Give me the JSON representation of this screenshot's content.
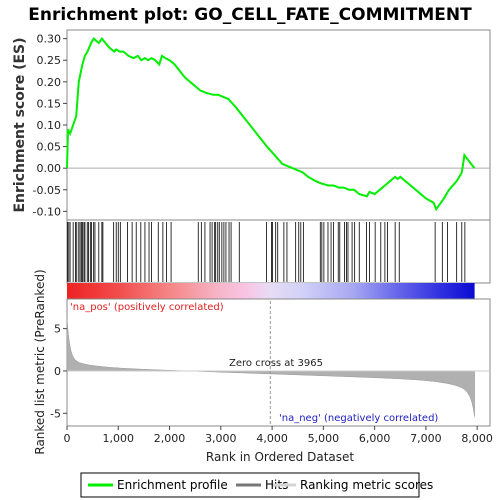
{
  "chart_data": {
    "type": "line",
    "title": "Enrichment plot: GO_CELL_FATE_COMMITMENT",
    "ylabel_top": "Enrichment score (ES)",
    "ylabel_bottom": "Ranked list metric (PreRanked)",
    "xlabel": "Rank in Ordered Dataset",
    "x_ticks": [
      "0",
      "1,000",
      "2,000",
      "3,000",
      "4,000",
      "5,000",
      "6,000",
      "7,000",
      "8,000"
    ],
    "x_tick_values": [
      0,
      1000,
      2000,
      3000,
      4000,
      5000,
      6000,
      7000,
      8000
    ],
    "xlim": [
      0,
      8250
    ],
    "es_ylim": [
      -0.12,
      0.32
    ],
    "es_ticks": [
      "0.30",
      "0.25",
      "0.20",
      "0.15",
      "0.10",
      "0.05",
      "0.00",
      "-0.05",
      "-0.10"
    ],
    "es_tick_values": [
      0.3,
      0.25,
      0.2,
      0.15,
      0.1,
      0.05,
      0.0,
      -0.05,
      -0.1
    ],
    "metric_ylim": [
      -6.5,
      8.5
    ],
    "metric_ticks": [
      "5",
      "0",
      "-5"
    ],
    "metric_tick_values": [
      5,
      0,
      -5
    ],
    "n_genes": 7950,
    "enrichment_profile": {
      "x": [
        0,
        20,
        60,
        180,
        230,
        300,
        350,
        400,
        470,
        520,
        620,
        680,
        820,
        920,
        960,
        1030,
        1100,
        1200,
        1300,
        1380,
        1450,
        1520,
        1580,
        1650,
        1720,
        1800,
        1850,
        1920,
        2000,
        2100,
        2300,
        2500,
        2600,
        2700,
        2850,
        2950,
        3050,
        3150,
        3300,
        3500,
        3700,
        3900,
        4050,
        4200,
        4400,
        4600,
        4700,
        4850,
        4950,
        5100,
        5200,
        5300,
        5400,
        5500,
        5600,
        5700,
        5850,
        5900,
        6000,
        6100,
        6200,
        6300,
        6400,
        6450,
        6500,
        6600,
        6800,
        7000,
        7150,
        7200,
        7350,
        7450,
        7600,
        7700,
        7750,
        7950
      ],
      "y": [
        0.0,
        0.09,
        0.08,
        0.12,
        0.2,
        0.24,
        0.26,
        0.27,
        0.29,
        0.3,
        0.29,
        0.3,
        0.28,
        0.27,
        0.275,
        0.27,
        0.27,
        0.26,
        0.255,
        0.26,
        0.25,
        0.255,
        0.25,
        0.255,
        0.25,
        0.24,
        0.26,
        0.255,
        0.25,
        0.24,
        0.21,
        0.19,
        0.18,
        0.175,
        0.17,
        0.17,
        0.165,
        0.16,
        0.14,
        0.11,
        0.08,
        0.05,
        0.03,
        0.01,
        0.0,
        -0.01,
        -0.02,
        -0.03,
        -0.035,
        -0.04,
        -0.04,
        -0.045,
        -0.045,
        -0.05,
        -0.05,
        -0.06,
        -0.065,
        -0.055,
        -0.06,
        -0.05,
        -0.04,
        -0.03,
        -0.02,
        -0.025,
        -0.02,
        -0.03,
        -0.05,
        -0.07,
        -0.08,
        -0.095,
        -0.07,
        -0.05,
        -0.03,
        -0.01,
        0.03,
        0.0
      ]
    },
    "hits": [
      10,
      35,
      60,
      120,
      165,
      190,
      230,
      255,
      280,
      300,
      330,
      350,
      395,
      420,
      455,
      480,
      520,
      545,
      620,
      680,
      700,
      910,
      960,
      1000,
      1040,
      1180,
      1270,
      1350,
      1440,
      1520,
      1600,
      1650,
      1780,
      1870,
      1940,
      2030,
      2560,
      2620,
      2690,
      2790,
      2830,
      2880,
      2900,
      2940,
      2970,
      3020,
      3060,
      3100,
      3160,
      3200,
      3360,
      3890,
      3990,
      4010,
      4070,
      4110,
      4230,
      4290,
      4460,
      4520,
      4560,
      4610,
      4940,
      4970,
      5010,
      5090,
      5150,
      5200,
      5290,
      5320,
      5410,
      5450,
      5480,
      5560,
      5610,
      5700,
      5840,
      5900,
      6010,
      6120,
      6200,
      6250,
      6400,
      6480,
      7180,
      7320,
      7420,
      7600,
      7700,
      7760
    ],
    "zero_cross_label": "Zero cross at 3965",
    "zero_cross": 3965,
    "pos_label": "'na_pos' (positively correlated)",
    "neg_label": "'na_neg' (negatively correlated)",
    "legend": [
      "Enrichment profile",
      "Hits",
      "Ranking metric scores"
    ],
    "colors": {
      "profile": "#00ee00",
      "hits": "#000000",
      "metric_fill": "#b0b0b0",
      "pos": "#ff0000",
      "neg": "#0000ff",
      "zero_line": "#9a9a9a"
    }
  }
}
